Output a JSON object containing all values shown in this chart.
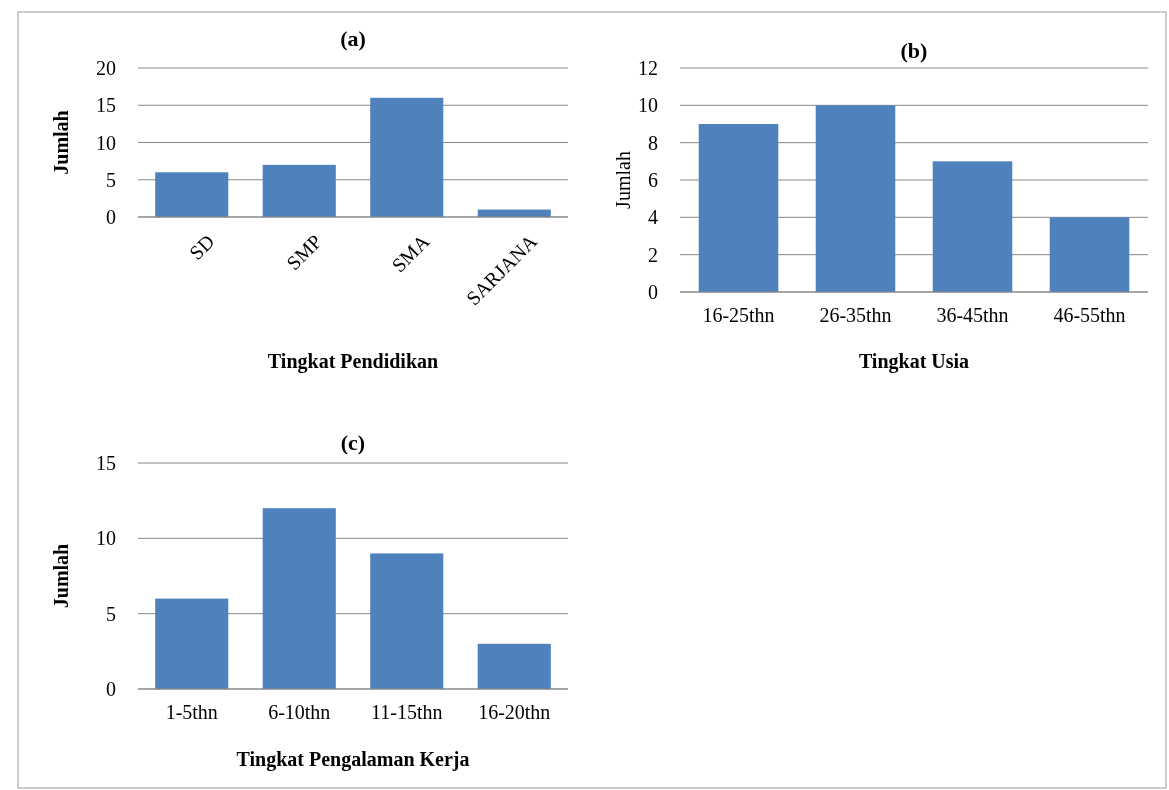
{
  "chart_data": [
    {
      "type": "bar",
      "title": "(a)",
      "xlabel": "Tingkat Pendidikan",
      "ylabel": "Jumlah",
      "categories": [
        "SD",
        "SMP",
        "SMA",
        "SARJANA"
      ],
      "values": [
        6,
        7,
        16,
        1
      ],
      "color": "#4f81bd",
      "ylim": [
        0,
        20
      ],
      "yticks": [
        0,
        5,
        10,
        15,
        20
      ],
      "grid": "y"
    },
    {
      "type": "bar",
      "title": "(b)",
      "xlabel": "Tingkat Usia",
      "ylabel": "Jumlah",
      "categories": [
        "16-25thn",
        "26-35thn",
        "36-45thn",
        "46-55thn"
      ],
      "values": [
        9,
        10,
        7,
        4
      ],
      "color": "#4f81bd",
      "ylim": [
        0,
        12
      ],
      "yticks": [
        0,
        2,
        4,
        6,
        8,
        10,
        12
      ],
      "grid": "y"
    },
    {
      "type": "bar",
      "title": "(c)",
      "xlabel": "Tingkat Pengalaman Kerja",
      "ylabel": "Jumlah",
      "categories": [
        "1-5thn",
        "6-10thn",
        "11-15thn",
        "16-20thn"
      ],
      "values": [
        6,
        12,
        9,
        3
      ],
      "color": "#4f81bd",
      "ylim": [
        0,
        15
      ],
      "yticks": [
        0,
        5,
        10,
        15
      ],
      "grid": "y"
    }
  ]
}
